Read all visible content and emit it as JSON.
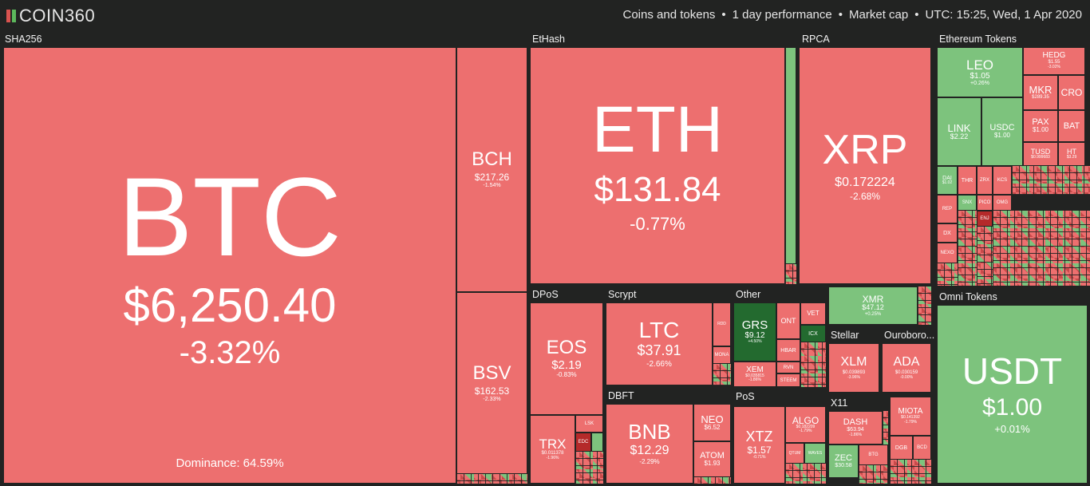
{
  "header": {
    "logo": "COIN360",
    "info": [
      "Coins and tokens",
      "1 day performance",
      "Market cap",
      "UTC: 15:25, Wed, 1 Apr 2020"
    ]
  },
  "groups": {
    "sha256": "SHA256",
    "ethash": "EtHash",
    "rpca": "RPCA",
    "eth_tokens": "Ethereum Tokens",
    "dpos": "DPoS",
    "scrypt": "Scrypt",
    "other": "Other",
    "omni": "Omni Tokens",
    "stellar": "Stellar",
    "ouroboros": "Ouroboro...",
    "dbft": "DBFT",
    "pos": "PoS",
    "x11": "X11"
  },
  "coins": {
    "btc": {
      "sym": "BTC",
      "price": "$6,250.40",
      "chg": "-3.32%",
      "extra": "Dominance: 64.59%"
    },
    "bch": {
      "sym": "BCH",
      "price": "$217.26",
      "chg": "-1.54%"
    },
    "bsv": {
      "sym": "BSV",
      "price": "$162.53",
      "chg": "-2.33%"
    },
    "eth": {
      "sym": "ETH",
      "price": "$131.84",
      "chg": "-0.77%"
    },
    "xrp": {
      "sym": "XRP",
      "price": "$0.172224",
      "chg": "-2.68%"
    },
    "leo": {
      "sym": "LEO",
      "price": "$1.05",
      "chg": "+0.26%"
    },
    "hedg": {
      "sym": "HEDG",
      "price": "$1.55",
      "chg": "-3.02%"
    },
    "mkr": {
      "sym": "MKR",
      "price": "$289.35",
      "chg": ""
    },
    "cro": {
      "sym": "CRO",
      "price": "",
      "chg": ""
    },
    "link": {
      "sym": "LINK",
      "price": "$2.22",
      "chg": ""
    },
    "usdc": {
      "sym": "USDC",
      "price": "$1.00",
      "chg": ""
    },
    "pax": {
      "sym": "PAX",
      "price": "$1.00",
      "chg": ""
    },
    "bat": {
      "sym": "BAT",
      "price": "",
      "chg": ""
    },
    "tusd": {
      "sym": "TUSD",
      "price": "$0.999683",
      "chg": ""
    },
    "ht": {
      "sym": "HT",
      "price": "$3.29",
      "chg": ""
    },
    "dai": {
      "sym": "DAI",
      "price": "$1.02",
      "chg": ""
    },
    "thr": {
      "sym": "THR",
      "price": "",
      "chg": ""
    },
    "zrx": {
      "sym": "ZRX",
      "price": "",
      "chg": ""
    },
    "kcs": {
      "sym": "KCS",
      "price": "",
      "chg": ""
    },
    "snx": {
      "sym": "SNX",
      "price": "",
      "chg": ""
    },
    "omg": {
      "sym": "OMG",
      "price": "",
      "chg": ""
    },
    "rep": {
      "sym": "REP",
      "price": "",
      "chg": ""
    },
    "pico": {
      "sym": "PICO",
      "price": "",
      "chg": ""
    },
    "enj": {
      "sym": "ENJ",
      "price": "",
      "chg": ""
    },
    "dx": {
      "sym": "DX",
      "price": "",
      "chg": ""
    },
    "nexo": {
      "sym": "NEXO",
      "price": "",
      "chg": ""
    },
    "eos": {
      "sym": "EOS",
      "price": "$2.19",
      "chg": "-0.83%"
    },
    "trx": {
      "sym": "TRX",
      "price": "$0.011378",
      "chg": "-1.96%"
    },
    "lsk": {
      "sym": "LSK",
      "price": "",
      "chg": ""
    },
    "edc": {
      "sym": "EDC",
      "price": "",
      "chg": ""
    },
    "ltc": {
      "sym": "LTC",
      "price": "$37.91",
      "chg": "-2.66%"
    },
    "mona": {
      "sym": "MONA",
      "price": "",
      "chg": ""
    },
    "rdd": {
      "sym": "RDD",
      "price": "",
      "chg": ""
    },
    "grs": {
      "sym": "GRS",
      "price": "$9.12",
      "chg": "+4.50%"
    },
    "ont": {
      "sym": "ONT",
      "price": "",
      "chg": ""
    },
    "vet": {
      "sym": "VET",
      "price": "",
      "chg": ""
    },
    "icx": {
      "sym": "ICX",
      "price": "",
      "chg": ""
    },
    "hbar": {
      "sym": "HBAR",
      "price": "",
      "chg": ""
    },
    "xem": {
      "sym": "XEM",
      "price": "$0.035815",
      "chg": "-1.86%"
    },
    "rvn": {
      "sym": "RVN",
      "price": "",
      "chg": ""
    },
    "steem": {
      "sym": "STEEM",
      "price": "",
      "chg": ""
    },
    "xmr": {
      "sym": "XMR",
      "price": "$47.12",
      "chg": "+0.25%"
    },
    "usdt": {
      "sym": "USDT",
      "price": "$1.00",
      "chg": "+0.01%"
    },
    "xlm": {
      "sym": "XLM",
      "price": "$0.039893",
      "chg": "-3.96%"
    },
    "ada": {
      "sym": "ADA",
      "price": "$0.030159",
      "chg": "-0.00%"
    },
    "bnb": {
      "sym": "BNB",
      "price": "$12.29",
      "chg": "-2.29%"
    },
    "neo": {
      "sym": "NEO",
      "price": "$6.52",
      "chg": ""
    },
    "atom": {
      "sym": "ATOM",
      "price": "$1.93",
      "chg": ""
    },
    "xtz": {
      "sym": "XTZ",
      "price": "$1.57",
      "chg": "-0.71%"
    },
    "algo": {
      "sym": "ALGO",
      "price": "$0.182209",
      "chg": "-1.79%"
    },
    "qtum": {
      "sym": "QTUM",
      "price": "",
      "chg": ""
    },
    "waves": {
      "sym": "WAVES",
      "price": "",
      "chg": ""
    },
    "dash": {
      "sym": "DASH",
      "price": "$63.94",
      "chg": "-1.86%"
    },
    "zec": {
      "sym": "ZEC",
      "price": "$30.58",
      "chg": ""
    },
    "btg": {
      "sym": "BTG",
      "price": "",
      "chg": ""
    },
    "miota": {
      "sym": "MIOTA",
      "price": "$0.141392",
      "chg": "-1.79%"
    },
    "dgb": {
      "sym": "DGB",
      "price": "",
      "chg": ""
    },
    "bcd": {
      "sym": "BCD",
      "price": "",
      "chg": ""
    }
  },
  "colors": {
    "down": "#ed6f6f",
    "up": "#7dc37d",
    "strong_up": "#236a2f",
    "strong_down": "#b52a2a",
    "bg": "#222322"
  }
}
